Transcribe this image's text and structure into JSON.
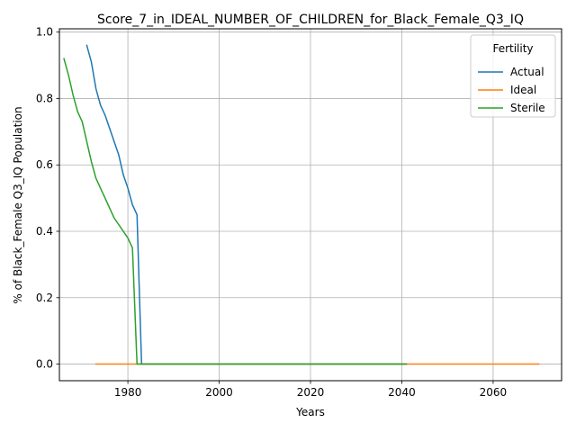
{
  "chart_data": {
    "type": "line",
    "title": "Score_7_in_IDEAL_NUMBER_OF_CHILDREN_for_Black_Female_Q3_IQ",
    "xlabel": "Years",
    "ylabel": "% of Black_Female Q3_IQ Population",
    "xlim": [
      1965,
      2075
    ],
    "ylim": [
      -0.05,
      1.01
    ],
    "xticks": [
      1980,
      2000,
      2020,
      2040,
      2060
    ],
    "yticks": [
      0.0,
      0.2,
      0.4,
      0.6,
      0.8,
      1.0
    ],
    "xtick_labels": [
      "1980",
      "2000",
      "2020",
      "2040",
      "2060"
    ],
    "ytick_labels": [
      "0.0",
      "0.2",
      "0.4",
      "0.6",
      "0.8",
      "1.0"
    ],
    "grid": true,
    "legend": {
      "title": "Fertility",
      "placement": "upper right"
    },
    "series": [
      {
        "name": "Actual",
        "color": "#1f77b4",
        "x": [
          1971,
          1972,
          1973,
          1974,
          1975,
          1976,
          1977,
          1978,
          1979,
          1980,
          1981,
          1982,
          1983,
          1984,
          1990,
          2000,
          2010,
          2020,
          2030,
          2040,
          2041
        ],
        "y": [
          0.96,
          0.91,
          0.83,
          0.78,
          0.75,
          0.71,
          0.67,
          0.63,
          0.57,
          0.53,
          0.48,
          0.45,
          0.0,
          0.0,
          0.0,
          0.0,
          0.0,
          0.0,
          0.0,
          0.0,
          0.0
        ]
      },
      {
        "name": "Ideal",
        "color": "#ff7f0e",
        "x": [
          1973,
          1980,
          1990,
          2000,
          2010,
          2020,
          2030,
          2040,
          2050,
          2060,
          2070
        ],
        "y": [
          0.0,
          0.0,
          0.0,
          0.0,
          0.0,
          0.0,
          0.0,
          0.0,
          0.0,
          0.0,
          0.0
        ]
      },
      {
        "name": "Sterile",
        "color": "#2ca02c",
        "x": [
          1966,
          1967,
          1968,
          1969,
          1970,
          1971,
          1972,
          1973,
          1974,
          1975,
          1976,
          1977,
          1978,
          1979,
          1980,
          1981,
          1982,
          1983,
          1990,
          2000,
          2010,
          2020,
          2030,
          2040,
          2041
        ],
        "y": [
          0.92,
          0.87,
          0.81,
          0.76,
          0.73,
          0.67,
          0.61,
          0.56,
          0.53,
          0.5,
          0.47,
          0.44,
          0.42,
          0.4,
          0.38,
          0.35,
          0.0,
          0.0,
          0.0,
          0.0,
          0.0,
          0.0,
          0.0,
          0.0,
          0.0
        ]
      }
    ]
  }
}
